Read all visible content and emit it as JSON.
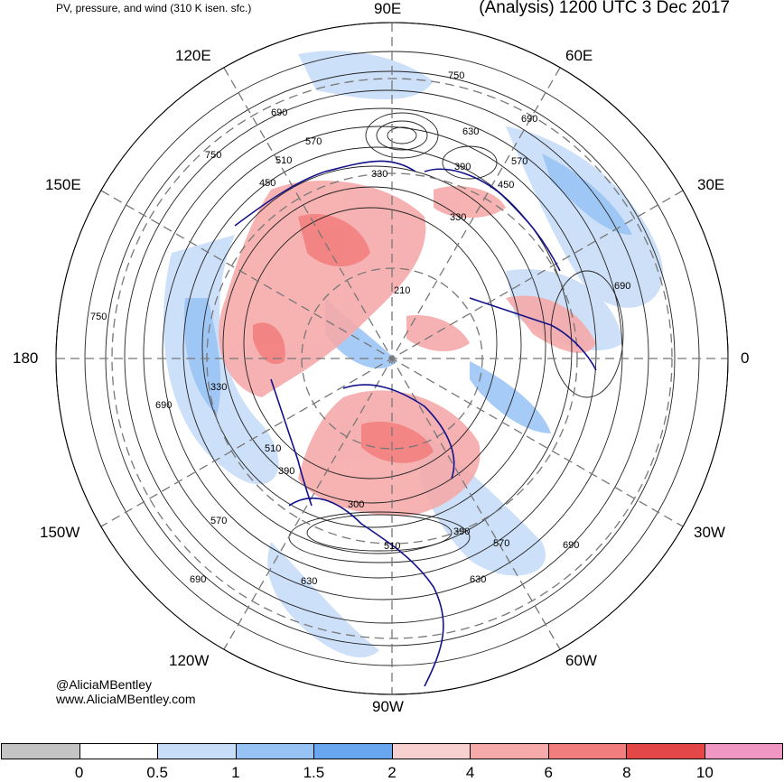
{
  "title_left": "PV, pressure, and wind (310 K isen. sfc.)",
  "title_right": "(Analysis) 1200 UTC 3 Dec 2017",
  "longitude_labels": {
    "lon_90e": "90E",
    "lon_60e": "60E",
    "lon_120e": "120E",
    "lon_150e": "150E",
    "lon_30e": "30E",
    "lon_180": "180",
    "lon_0": "0",
    "lon_150w": "150W",
    "lon_30w": "30W",
    "lon_120w": "120W",
    "lon_60w": "60W",
    "lon_90w": "90W"
  },
  "contour_labels": [
    "750",
    "690",
    "570",
    "630",
    "510",
    "450",
    "330",
    "390",
    "750",
    "690",
    "330",
    "210",
    "690",
    "750",
    "690",
    "330",
    "510",
    "390",
    "300",
    "570",
    "390",
    "570",
    "690",
    "690",
    "630",
    "630",
    "570",
    "510",
    "450"
  ],
  "credit_handle": "@AliciaMBentley",
  "credit_url": "www.AliciaMBentley.com",
  "colorbar": {
    "ticks": [
      "0",
      "0.5",
      "1",
      "1.5",
      "2",
      "4",
      "6",
      "8",
      "10"
    ],
    "colors": [
      "#c4c4c4",
      "#ffffff",
      "#c8ddf8",
      "#97c2f4",
      "#68a6ef",
      "#f8d0d0",
      "#f6aaaa",
      "#f27d7d",
      "#e34747",
      "#f197c4"
    ]
  }
}
